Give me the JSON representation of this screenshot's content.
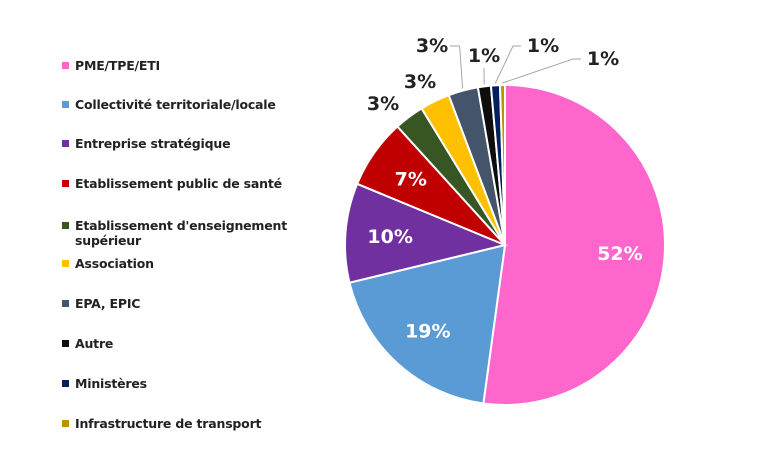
{
  "chart_data": {
    "type": "pie",
    "title": "",
    "legend_position": "left",
    "start_angle_deg": 0,
    "direction": "clockwise",
    "categories": [
      "PME/TPE/ETI",
      "Collectivité territoriale/locale",
      "Entreprise stratégique",
      "Etablissement public de santé",
      "Etablissement d'enseignement supérieur",
      "Association",
      "EPA, EPIC",
      "Autre",
      "Ministères",
      "Infrastructure de transport"
    ],
    "values": [
      52,
      19,
      10,
      7,
      3,
      3,
      3,
      1,
      1,
      1
    ],
    "labels": [
      "52%",
      "19%",
      "10%",
      "7%",
      "3%",
      "3%",
      "3%",
      "1%",
      "1%",
      "1%"
    ],
    "colors": [
      "#ff66cc",
      "#5b9bd5",
      "#7030a0",
      "#c00000",
      "#375623",
      "#ffc000",
      "#44546a",
      "#0d0d0d",
      "#002060",
      "#bf9000"
    ],
    "render_values": [
      52,
      19,
      10,
      7,
      3,
      3,
      3,
      1.3,
      0.9,
      0.5
    ]
  },
  "legend": {
    "items": [
      {
        "label": "PME/TPE/ETI",
        "color": "#ff66cc"
      },
      {
        "label": "Collectivité territoriale/locale",
        "color": "#5b9bd5"
      },
      {
        "label": "Entreprise stratégique",
        "color": "#7030a0"
      },
      {
        "label": "Etablissement public de santé",
        "color": "#c00000"
      },
      {
        "label": "Etablissement d'enseignement supérieur",
        "color": "#375623"
      },
      {
        "label": "Association",
        "color": "#ffc000"
      },
      {
        "label": "EPA, EPIC",
        "color": "#44546a"
      },
      {
        "label": "Autre",
        "color": "#0d0d0d"
      },
      {
        "label": "Ministères",
        "color": "#002060"
      },
      {
        "label": "Infrastructure de transport",
        "color": "#bf9000"
      }
    ]
  }
}
